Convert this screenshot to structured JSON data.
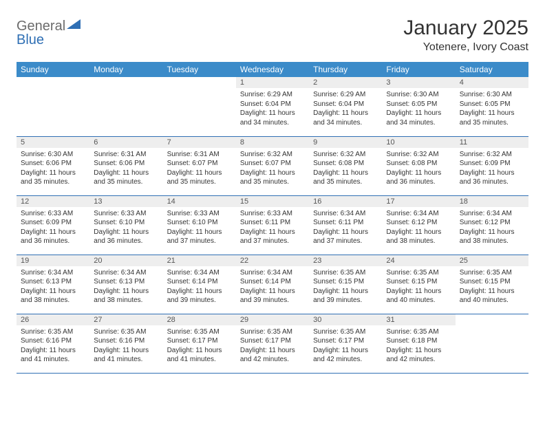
{
  "branding": {
    "logo_word1": "General",
    "logo_word2": "Blue",
    "logo_text_color": "#6b6b6b",
    "logo_accent_color": "#2f6fb4"
  },
  "header": {
    "month_title": "January 2025",
    "location": "Yotenere, Ivory Coast"
  },
  "style": {
    "header_bg": "#3b8bc9",
    "header_text": "#ffffff",
    "daynum_bg": "#eeeeee",
    "rule_color": "#2f6fb4",
    "body_text": "#333333",
    "title_fontsize_pt": 22,
    "location_fontsize_pt": 12,
    "dayheader_fontsize_pt": 9,
    "dayinfo_fontsize_pt": 7.5
  },
  "calendar": {
    "day_names": [
      "Sunday",
      "Monday",
      "Tuesday",
      "Wednesday",
      "Thursday",
      "Friday",
      "Saturday"
    ],
    "weeks": [
      [
        {
          "empty": true
        },
        {
          "empty": true
        },
        {
          "empty": true
        },
        {
          "n": "1",
          "sr": "6:29 AM",
          "ss": "6:04 PM",
          "dl": "11 hours and 34 minutes."
        },
        {
          "n": "2",
          "sr": "6:29 AM",
          "ss": "6:04 PM",
          "dl": "11 hours and 34 minutes."
        },
        {
          "n": "3",
          "sr": "6:30 AM",
          "ss": "6:05 PM",
          "dl": "11 hours and 34 minutes."
        },
        {
          "n": "4",
          "sr": "6:30 AM",
          "ss": "6:05 PM",
          "dl": "11 hours and 35 minutes."
        }
      ],
      [
        {
          "n": "5",
          "sr": "6:30 AM",
          "ss": "6:06 PM",
          "dl": "11 hours and 35 minutes."
        },
        {
          "n": "6",
          "sr": "6:31 AM",
          "ss": "6:06 PM",
          "dl": "11 hours and 35 minutes."
        },
        {
          "n": "7",
          "sr": "6:31 AM",
          "ss": "6:07 PM",
          "dl": "11 hours and 35 minutes."
        },
        {
          "n": "8",
          "sr": "6:32 AM",
          "ss": "6:07 PM",
          "dl": "11 hours and 35 minutes."
        },
        {
          "n": "9",
          "sr": "6:32 AM",
          "ss": "6:08 PM",
          "dl": "11 hours and 35 minutes."
        },
        {
          "n": "10",
          "sr": "6:32 AM",
          "ss": "6:08 PM",
          "dl": "11 hours and 36 minutes."
        },
        {
          "n": "11",
          "sr": "6:32 AM",
          "ss": "6:09 PM",
          "dl": "11 hours and 36 minutes."
        }
      ],
      [
        {
          "n": "12",
          "sr": "6:33 AM",
          "ss": "6:09 PM",
          "dl": "11 hours and 36 minutes."
        },
        {
          "n": "13",
          "sr": "6:33 AM",
          "ss": "6:10 PM",
          "dl": "11 hours and 36 minutes."
        },
        {
          "n": "14",
          "sr": "6:33 AM",
          "ss": "6:10 PM",
          "dl": "11 hours and 37 minutes."
        },
        {
          "n": "15",
          "sr": "6:33 AM",
          "ss": "6:11 PM",
          "dl": "11 hours and 37 minutes."
        },
        {
          "n": "16",
          "sr": "6:34 AM",
          "ss": "6:11 PM",
          "dl": "11 hours and 37 minutes."
        },
        {
          "n": "17",
          "sr": "6:34 AM",
          "ss": "6:12 PM",
          "dl": "11 hours and 38 minutes."
        },
        {
          "n": "18",
          "sr": "6:34 AM",
          "ss": "6:12 PM",
          "dl": "11 hours and 38 minutes."
        }
      ],
      [
        {
          "n": "19",
          "sr": "6:34 AM",
          "ss": "6:13 PM",
          "dl": "11 hours and 38 minutes."
        },
        {
          "n": "20",
          "sr": "6:34 AM",
          "ss": "6:13 PM",
          "dl": "11 hours and 38 minutes."
        },
        {
          "n": "21",
          "sr": "6:34 AM",
          "ss": "6:14 PM",
          "dl": "11 hours and 39 minutes."
        },
        {
          "n": "22",
          "sr": "6:34 AM",
          "ss": "6:14 PM",
          "dl": "11 hours and 39 minutes."
        },
        {
          "n": "23",
          "sr": "6:35 AM",
          "ss": "6:15 PM",
          "dl": "11 hours and 39 minutes."
        },
        {
          "n": "24",
          "sr": "6:35 AM",
          "ss": "6:15 PM",
          "dl": "11 hours and 40 minutes."
        },
        {
          "n": "25",
          "sr": "6:35 AM",
          "ss": "6:15 PM",
          "dl": "11 hours and 40 minutes."
        }
      ],
      [
        {
          "n": "26",
          "sr": "6:35 AM",
          "ss": "6:16 PM",
          "dl": "11 hours and 41 minutes."
        },
        {
          "n": "27",
          "sr": "6:35 AM",
          "ss": "6:16 PM",
          "dl": "11 hours and 41 minutes."
        },
        {
          "n": "28",
          "sr": "6:35 AM",
          "ss": "6:17 PM",
          "dl": "11 hours and 41 minutes."
        },
        {
          "n": "29",
          "sr": "6:35 AM",
          "ss": "6:17 PM",
          "dl": "11 hours and 42 minutes."
        },
        {
          "n": "30",
          "sr": "6:35 AM",
          "ss": "6:17 PM",
          "dl": "11 hours and 42 minutes."
        },
        {
          "n": "31",
          "sr": "6:35 AM",
          "ss": "6:18 PM",
          "dl": "11 hours and 42 minutes."
        },
        {
          "empty": true
        }
      ]
    ],
    "labels": {
      "sunrise": "Sunrise:",
      "sunset": "Sunset:",
      "daylight": "Daylight:"
    }
  }
}
